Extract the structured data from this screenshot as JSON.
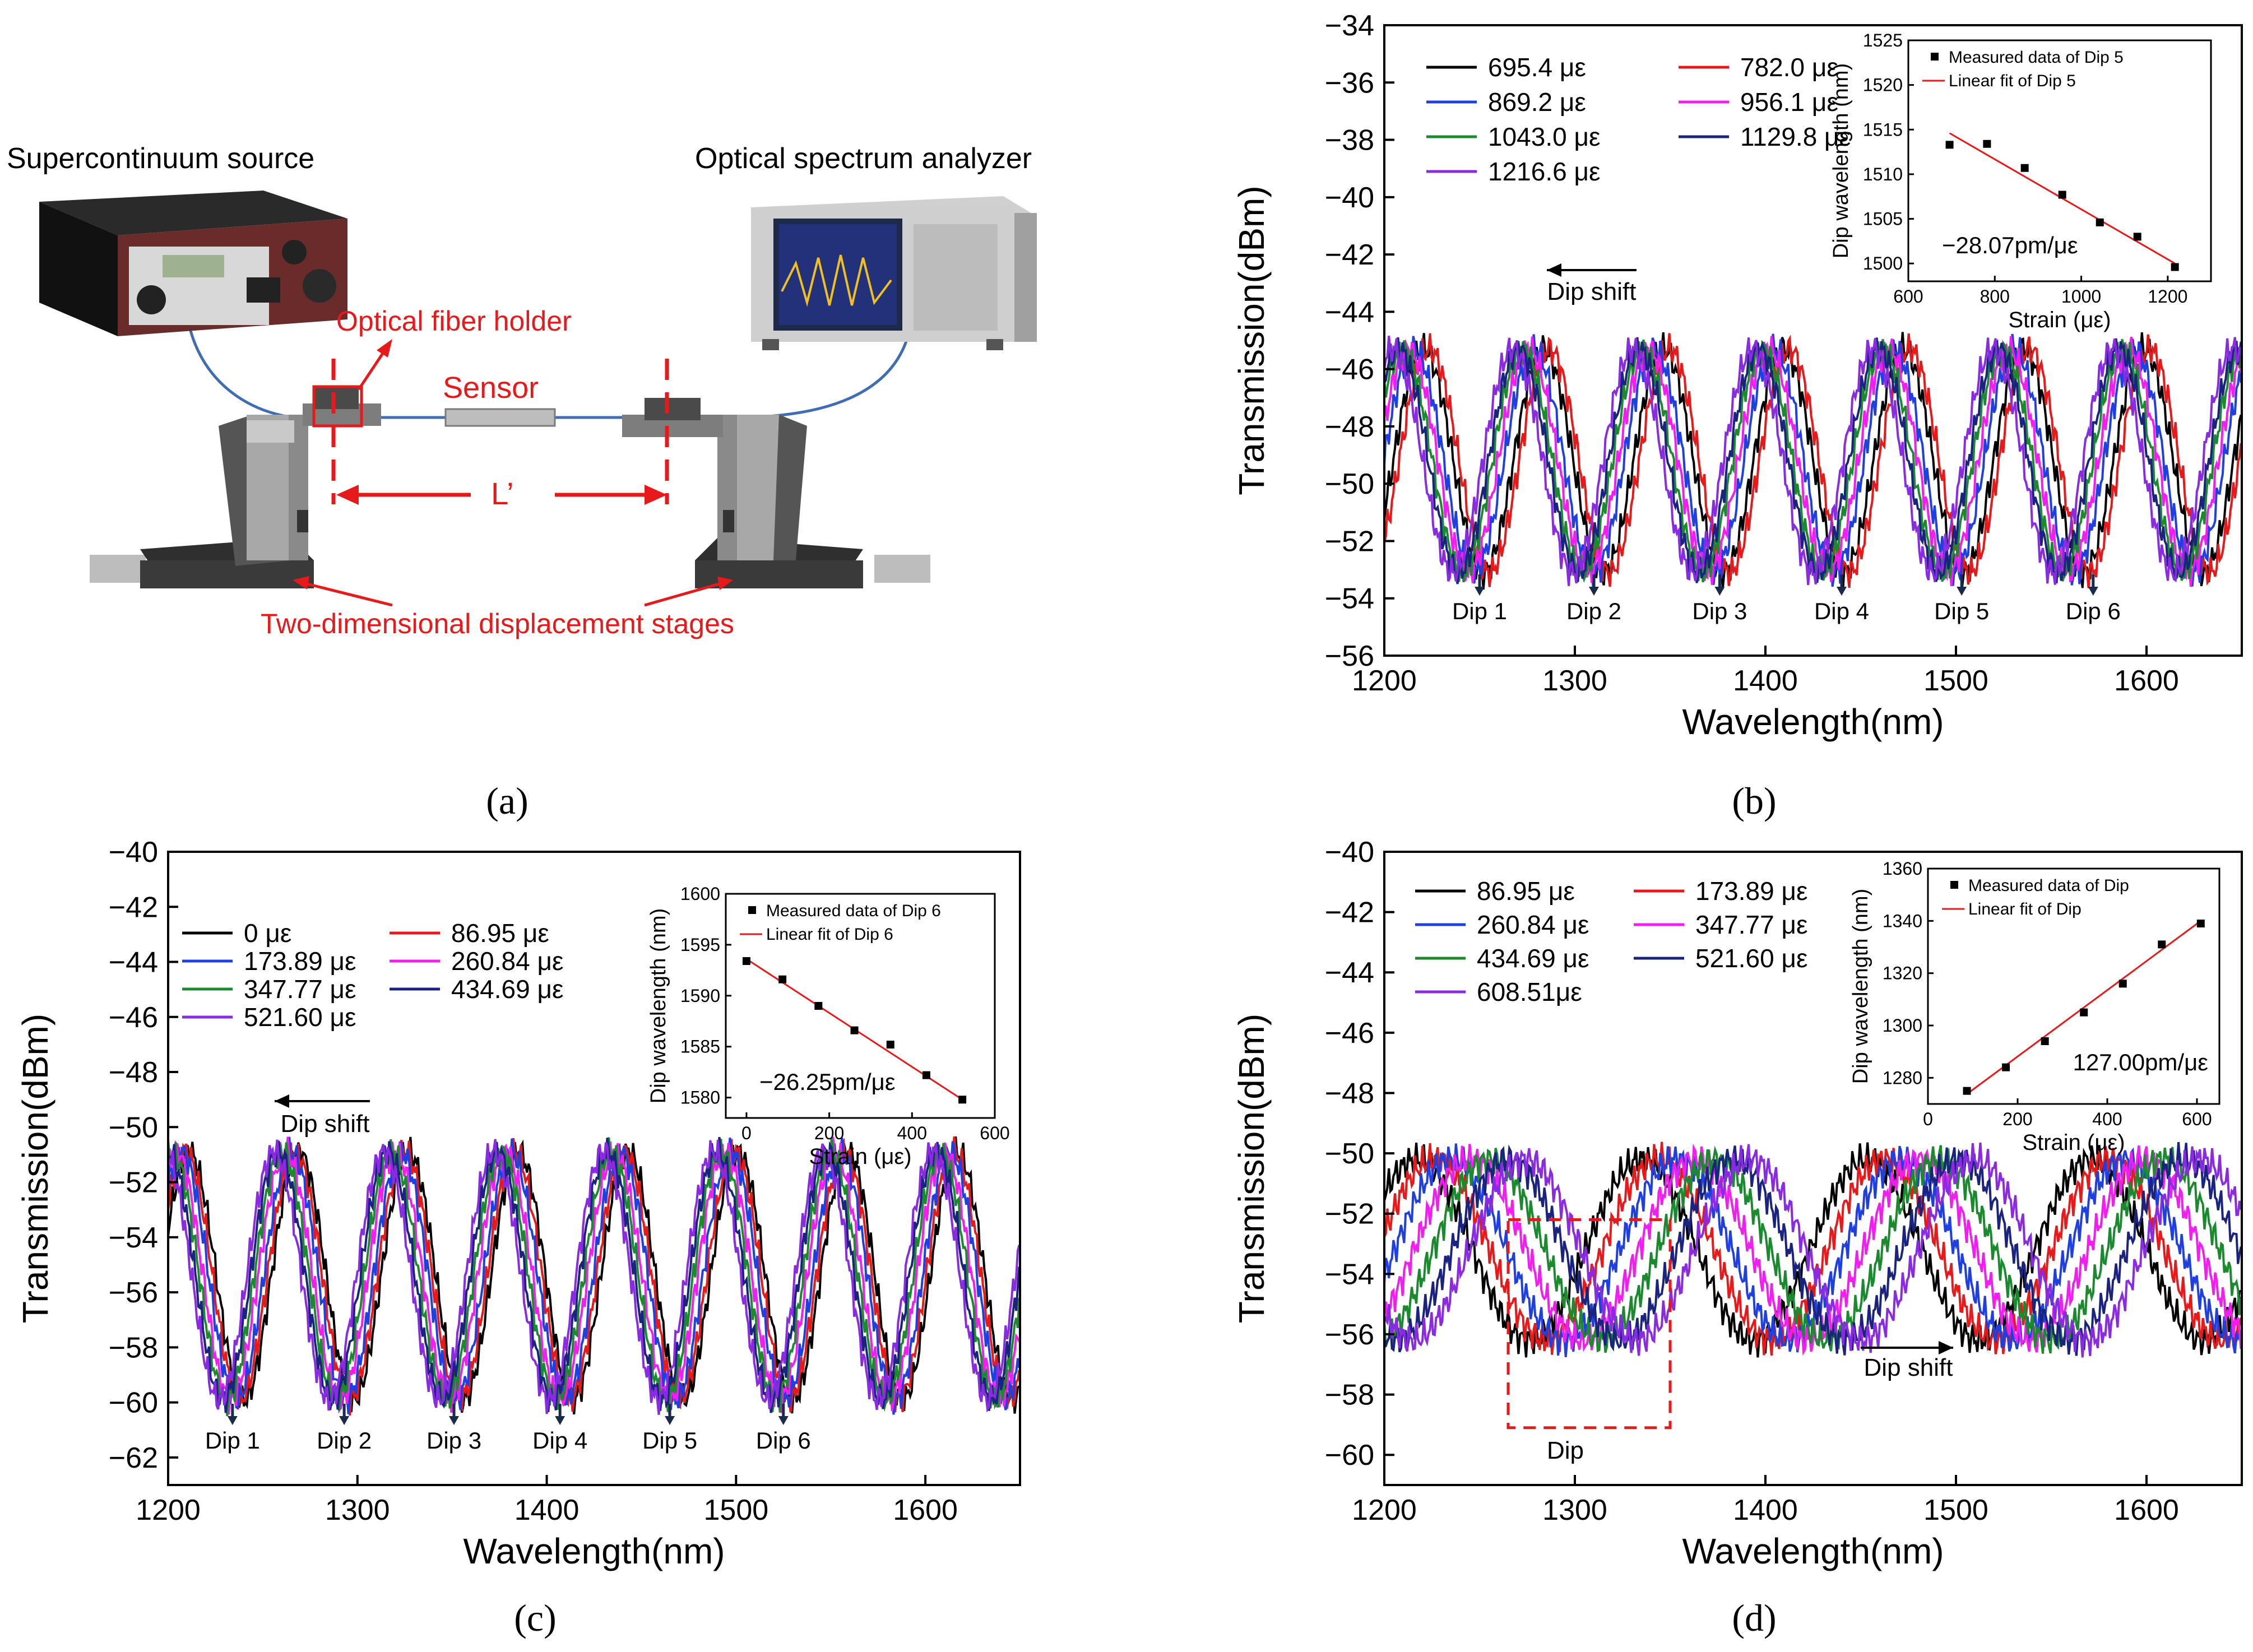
{
  "figure": {
    "panel_labels": [
      "(a)",
      "(b)",
      "(c)",
      "(d)"
    ],
    "setup": {
      "source_label": "Supercontinuum source",
      "osa_label": "Optical spectrum analyzer",
      "holder_label": "Optical fiber holder",
      "sensor_label": "Sensor",
      "length_label": "L’",
      "stages_label": "Two-dimensional displacement stages",
      "colors": {
        "annotation": "#e8191b",
        "fiber": "#3f6db3",
        "stage": "#3a3a3a"
      }
    }
  },
  "chart_data": [
    {
      "type": "line",
      "panel": "(b)",
      "xlabel": "Wavelength(nm)",
      "ylabel": "Transmission(dBm)",
      "xlim": [
        1200,
        1650
      ],
      "ylim": [
        -56,
        -34
      ],
      "xticks": [
        1200,
        1300,
        1400,
        1500,
        1600
      ],
      "yticks": [
        -56,
        -54,
        -52,
        -50,
        -48,
        -46,
        -44,
        -42,
        -40,
        -38,
        -36,
        -34
      ],
      "series": [
        {
          "name": "695.4 με",
          "color": "#000000",
          "shift": 0
        },
        {
          "name": "782.0 με",
          "color": "#e8191b",
          "shift": 3
        },
        {
          "name": "869.2 με",
          "color": "#1f3fe0",
          "shift": -5
        },
        {
          "name": "956.1 με",
          "color": "#f01ff0",
          "shift": -8
        },
        {
          "name": "1043.0 με",
          "color": "#1b8a2e",
          "shift": -11
        },
        {
          "name": "1129.8 με",
          "color": "#1a237e",
          "shift": -13
        },
        {
          "name": "1216.6 με",
          "color": "#8a2be2",
          "shift": -16
        }
      ],
      "spectrum": {
        "period": 63,
        "phase": 1252,
        "center": -49.2,
        "amp": 3.9
      },
      "dips": [
        {
          "label": "Dip 1",
          "x": 1250
        },
        {
          "label": "Dip 2",
          "x": 1310
        },
        {
          "label": "Dip 3",
          "x": 1376
        },
        {
          "label": "Dip 4",
          "x": 1440
        },
        {
          "label": "Dip 5",
          "x": 1503
        },
        {
          "label": "Dip 6",
          "x": 1572
        }
      ],
      "arrow_label": "Dip shift",
      "arrow_direction": "left",
      "inset": {
        "xlabel": "Strain (με)",
        "ylabel": "Dip wavelength (nm)",
        "xlim": [
          600,
          1300
        ],
        "ylim": [
          1498,
          1525
        ],
        "xticks": [
          600,
          800,
          1000,
          1200
        ],
        "yticks": [
          1500,
          1505,
          1510,
          1515,
          1520,
          1525
        ],
        "legend": [
          "Measured data of Dip 5",
          "Linear fit of Dip 5"
        ],
        "annotation": "−28.07pm/με",
        "points": [
          [
            695.4,
            1513.3
          ],
          [
            782.0,
            1513.4
          ],
          [
            869.2,
            1510.7
          ],
          [
            956.1,
            1507.7
          ],
          [
            1043.0,
            1504.6
          ],
          [
            1129.8,
            1503.0
          ],
          [
            1216.6,
            1499.6
          ]
        ],
        "fit": [
          [
            695.4,
            1514.6
          ],
          [
            1216.6,
            1500.0
          ]
        ]
      }
    },
    {
      "type": "line",
      "panel": "(c)",
      "xlabel": "Wavelength(nm)",
      "ylabel": "Transmission(dBm)",
      "xlim": [
        1200,
        1650
      ],
      "ylim": [
        -63,
        -40
      ],
      "xticks": [
        1200,
        1300,
        1400,
        1500,
        1600
      ],
      "yticks": [
        -62,
        -60,
        -58,
        -56,
        -54,
        -52,
        -50,
        -48,
        -46,
        -44,
        -42,
        -40
      ],
      "series": [
        {
          "name": "0 με",
          "color": "#000000",
          "shift": 0
        },
        {
          "name": "86.95 με",
          "color": "#e8191b",
          "shift": -2
        },
        {
          "name": "173.89 με",
          "color": "#1f3fe0",
          "shift": -4
        },
        {
          "name": "260.84 με",
          "color": "#f01ff0",
          "shift": -7
        },
        {
          "name": "347.77 με",
          "color": "#1b8a2e",
          "shift": -9
        },
        {
          "name": "434.69 με",
          "color": "#1a237e",
          "shift": -11
        },
        {
          "name": "521.60 με",
          "color": "#8a2be2",
          "shift": -13
        }
      ],
      "spectrum": {
        "period": 58,
        "phase": 1240,
        "center": -55.4,
        "amp": 4.5
      },
      "dips": [
        {
          "label": "Dip 1",
          "x": 1234
        },
        {
          "label": "Dip 2",
          "x": 1293
        },
        {
          "label": "Dip 3",
          "x": 1351
        },
        {
          "label": "Dip 4",
          "x": 1407
        },
        {
          "label": "Dip 5",
          "x": 1465
        },
        {
          "label": "Dip 6",
          "x": 1525
        }
      ],
      "arrow_label": "Dip shift",
      "arrow_direction": "left",
      "inset": {
        "xlabel": "Strain (με)",
        "ylabel": "Dip wavelength (nm)",
        "xlim": [
          -50,
          600
        ],
        "ylim": [
          1578,
          1600
        ],
        "xticks": [
          0,
          200,
          400,
          600
        ],
        "yticks": [
          1580,
          1585,
          1590,
          1595,
          1600
        ],
        "legend": [
          "Measured data of Dip 6",
          "Linear fit of Dip 6"
        ],
        "annotation": "−26.25pm/με",
        "points": [
          [
            0,
            1593.4
          ],
          [
            86.95,
            1591.6
          ],
          [
            173.89,
            1589.0
          ],
          [
            260.84,
            1586.6
          ],
          [
            347.77,
            1585.2
          ],
          [
            434.69,
            1582.2
          ],
          [
            521.6,
            1579.8
          ]
        ],
        "fit": [
          [
            0,
            1593.6
          ],
          [
            521.6,
            1579.8
          ]
        ]
      }
    },
    {
      "type": "line",
      "panel": "(d)",
      "xlabel": "Wavelength(nm)",
      "ylabel": "Transmission(dBm)",
      "xlim": [
        1200,
        1650
      ],
      "ylim": [
        -61,
        -40
      ],
      "xticks": [
        1200,
        1300,
        1400,
        1500,
        1600
      ],
      "yticks": [
        -60,
        -58,
        -56,
        -54,
        -52,
        -50,
        -48,
        -46,
        -44,
        -42,
        -40
      ],
      "series": [
        {
          "name": "86.95 με",
          "color": "#000000",
          "shift": 0
        },
        {
          "name": "173.89 με",
          "color": "#e8191b",
          "shift": 9
        },
        {
          "name": "260.84 με",
          "color": "#1f3fe0",
          "shift": 18
        },
        {
          "name": "347.77 με",
          "color": "#f01ff0",
          "shift": 28
        },
        {
          "name": "434.69 με",
          "color": "#1b8a2e",
          "shift": 38
        },
        {
          "name": "521.60 με",
          "color": "#1a237e",
          "shift": 48
        },
        {
          "name": "608.51με",
          "color": "#8a2be2",
          "shift": 57
        }
      ],
      "spectrum": {
        "period": 118,
        "phase": 1276,
        "center": -53.2,
        "amp": 3.0
      },
      "dips": [],
      "box_label": "Dip",
      "arrow_label": "Dip shift",
      "arrow_direction": "right",
      "inset": {
        "xlabel": "Strain (με)",
        "ylabel": "Dip wavelength (nm)",
        "xlim": [
          0,
          650
        ],
        "ylim": [
          1270,
          1360
        ],
        "xticks": [
          0,
          200,
          400,
          600
        ],
        "yticks": [
          1280,
          1300,
          1320,
          1340,
          1360
        ],
        "legend": [
          "Measured data of Dip",
          "Linear fit of Dip"
        ],
        "annotation": "127.00pm/με",
        "points": [
          [
            86.95,
            1275.0
          ],
          [
            173.89,
            1284.0
          ],
          [
            260.84,
            1294.0
          ],
          [
            347.77,
            1305.0
          ],
          [
            434.69,
            1316.0
          ],
          [
            521.6,
            1331.0
          ],
          [
            608.51,
            1339.0
          ]
        ],
        "fit": [
          [
            86.95,
            1273.8
          ],
          [
            608.51,
            1340.0
          ]
        ]
      }
    }
  ]
}
